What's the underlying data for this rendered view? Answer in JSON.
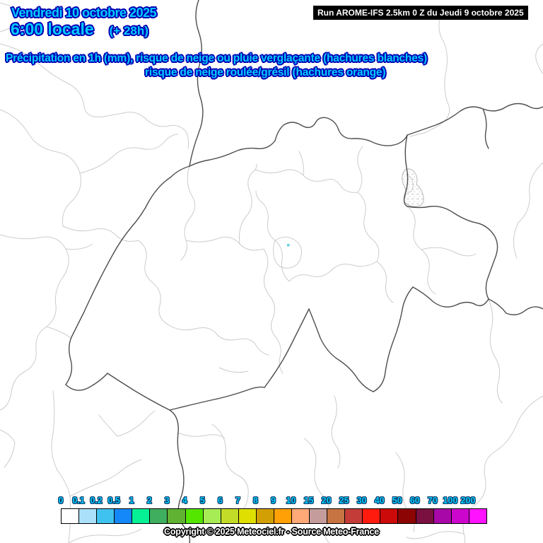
{
  "header": {
    "date": "Vendredi 10 octobre 2025",
    "time": "6:00 locale",
    "offset": "(+ 28h)",
    "run_info": "Run AROME-IFS 2.5km 0 Z du Jeudi 9 octobre 2025"
  },
  "subtitle": {
    "line1": "Précipitation en 1h (mm), risque de neige ou pluie verglaçante (hachures blanches)",
    "line2": "risque de neige roulée/grésil (hachures orange)"
  },
  "legend": {
    "title": "Précipitation en 1h (mm)",
    "labels": [
      "0",
      "0.1",
      "0.2",
      "0.5",
      "1",
      "2",
      "3",
      "4",
      "5",
      "6",
      "7",
      "8",
      "9",
      "10",
      "15",
      "20",
      "25",
      "30",
      "40",
      "50",
      "60",
      "70",
      "100",
      "200"
    ],
    "colors": [
      "#FFFFFF",
      "#ABE0FA",
      "#3FC2F0",
      "#1488F8",
      "#06F096",
      "#3FAE5E",
      "#5FB232",
      "#55E600",
      "#A8EC55",
      "#C3DC28",
      "#DFE002",
      "#D2A004",
      "#FFA006",
      "#FFA878",
      "#C59C9C",
      "#C87442",
      "#C43C38",
      "#FF1C0E",
      "#CC0A0A",
      "#8C0404",
      "#7A1040",
      "#A808A8",
      "#CC06CC",
      "#FF12FF"
    ]
  },
  "footer": {
    "copyright": "Copyright © 2025 Meteociel.fr - Source Meteo-France"
  },
  "colors": {
    "headline_fill": "#00CCFF",
    "headline_outline": "#0000B4",
    "run_box_bg": "#000000",
    "run_box_text": "#FFFFFF",
    "national_border": "#4D4D4D",
    "regional_border": "#CCCCCC",
    "precip_spot": "#6AD1E3"
  }
}
